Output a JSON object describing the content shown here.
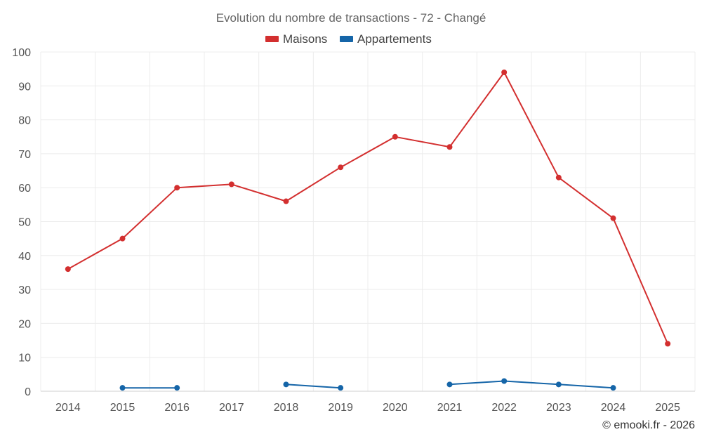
{
  "chart_data": {
    "type": "line",
    "title": "Evolution du nombre de transactions - 72 - Changé",
    "categories": [
      "2014",
      "2015",
      "2016",
      "2017",
      "2018",
      "2019",
      "2020",
      "2021",
      "2022",
      "2023",
      "2024",
      "2025"
    ],
    "ylim": [
      0,
      100
    ],
    "yticks": [
      0,
      10,
      20,
      30,
      40,
      50,
      60,
      70,
      80,
      90,
      100
    ],
    "grid": true,
    "legend_position": "top-center",
    "series": [
      {
        "name": "Maisons",
        "color": "#d32f2f",
        "values": [
          36,
          45,
          60,
          61,
          56,
          66,
          75,
          72,
          94,
          63,
          51,
          14
        ]
      },
      {
        "name": "Appartements",
        "color": "#1565a8",
        "values": [
          null,
          1,
          1,
          null,
          2,
          1,
          null,
          2,
          3,
          2,
          1,
          null
        ]
      }
    ]
  },
  "credit": "© emooki.fr - 2026"
}
